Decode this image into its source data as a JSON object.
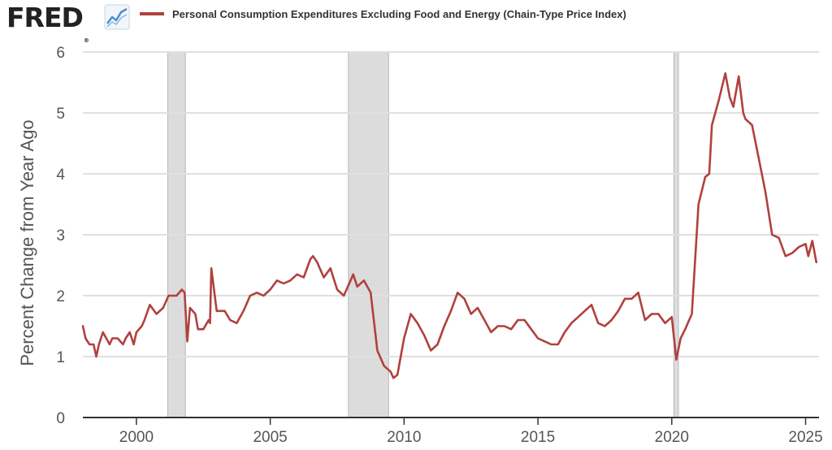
{
  "brand": {
    "logo_text": "FRED",
    "registered": "®",
    "logo_icon": "line-chart-icon"
  },
  "colors": {
    "series": "#b0413e",
    "recession": "#dcdcdc",
    "grid": "#e0e0e0",
    "axis": "#555555"
  },
  "chart_data": {
    "type": "line",
    "legend": "top-left",
    "ylabel": "Percent Change from Year Ago",
    "xlim": [
      1998.0,
      2025.5
    ],
    "ylim": [
      0,
      6
    ],
    "yticks": [
      0,
      1,
      2,
      3,
      4,
      5,
      6
    ],
    "xticks": [
      2000,
      2005,
      2010,
      2015,
      2020,
      2025
    ],
    "grid": true,
    "recessions": [
      [
        2001.17,
        2001.83
      ],
      [
        2007.92,
        2009.42
      ],
      [
        2020.08,
        2020.25
      ]
    ],
    "series": [
      {
        "name": "Personal Consumption Expenditures Excluding Food and Energy (Chain-Type Price Index)",
        "x": [
          1998.0,
          1998.1,
          1998.25,
          1998.4,
          1998.5,
          1998.6,
          1998.75,
          1999.0,
          1999.1,
          1999.3,
          1999.5,
          1999.6,
          1999.75,
          1999.9,
          2000.0,
          2000.2,
          2000.3,
          2000.5,
          2000.75,
          2001.0,
          2001.2,
          2001.5,
          2001.7,
          2001.8,
          2001.9,
          2002.0,
          2002.2,
          2002.3,
          2002.5,
          2002.7,
          2002.75,
          2002.8,
          2003.0,
          2003.3,
          2003.5,
          2003.75,
          2004.0,
          2004.25,
          2004.5,
          2004.75,
          2005.0,
          2005.25,
          2005.5,
          2005.75,
          2006.0,
          2006.25,
          2006.5,
          2006.6,
          2006.75,
          2007.0,
          2007.25,
          2007.5,
          2007.75,
          2008.0,
          2008.1,
          2008.25,
          2008.5,
          2008.75,
          2009.0,
          2009.25,
          2009.5,
          2009.6,
          2009.75,
          2010.0,
          2010.25,
          2010.5,
          2010.75,
          2011.0,
          2011.25,
          2011.5,
          2011.75,
          2012.0,
          2012.25,
          2012.5,
          2012.75,
          2013.0,
          2013.25,
          2013.5,
          2013.75,
          2014.0,
          2014.25,
          2014.5,
          2014.75,
          2015.0,
          2015.25,
          2015.5,
          2015.75,
          2016.0,
          2016.25,
          2016.5,
          2016.75,
          2017.0,
          2017.25,
          2017.5,
          2017.75,
          2018.0,
          2018.25,
          2018.5,
          2018.75,
          2019.0,
          2019.25,
          2019.5,
          2019.75,
          2020.0,
          2020.17,
          2020.33,
          2020.5,
          2020.75,
          2021.0,
          2021.25,
          2021.4,
          2021.5,
          2021.75,
          2022.0,
          2022.17,
          2022.3,
          2022.5,
          2022.67,
          2022.75,
          2023.0,
          2023.25,
          2023.5,
          2023.75,
          2024.0,
          2024.25,
          2024.5,
          2024.75,
          2025.0,
          2025.1,
          2025.25,
          2025.4
        ],
        "values": [
          1.5,
          1.3,
          1.2,
          1.2,
          1.0,
          1.2,
          1.4,
          1.2,
          1.3,
          1.3,
          1.2,
          1.3,
          1.4,
          1.2,
          1.4,
          1.5,
          1.6,
          1.85,
          1.7,
          1.8,
          2.0,
          2.0,
          2.1,
          2.05,
          1.25,
          1.8,
          1.7,
          1.45,
          1.45,
          1.6,
          1.55,
          2.45,
          1.75,
          1.75,
          1.6,
          1.55,
          1.75,
          2.0,
          2.05,
          2.0,
          2.1,
          2.25,
          2.2,
          2.25,
          2.35,
          2.3,
          2.6,
          2.65,
          2.55,
          2.3,
          2.45,
          2.1,
          2.0,
          2.25,
          2.35,
          2.15,
          2.25,
          2.05,
          1.1,
          0.85,
          0.75,
          0.65,
          0.7,
          1.3,
          1.7,
          1.55,
          1.35,
          1.1,
          1.2,
          1.5,
          1.75,
          2.05,
          1.95,
          1.7,
          1.8,
          1.6,
          1.4,
          1.5,
          1.5,
          1.45,
          1.6,
          1.6,
          1.45,
          1.3,
          1.25,
          1.2,
          1.2,
          1.4,
          1.55,
          1.65,
          1.75,
          1.85,
          1.55,
          1.5,
          1.6,
          1.75,
          1.95,
          1.95,
          2.05,
          1.6,
          1.7,
          1.7,
          1.55,
          1.65,
          0.95,
          1.3,
          1.45,
          1.7,
          3.5,
          3.95,
          4.0,
          4.8,
          5.2,
          5.65,
          5.25,
          5.1,
          5.6,
          5.0,
          4.9,
          4.8,
          4.25,
          3.7,
          3.0,
          2.95,
          2.65,
          2.7,
          2.8,
          2.85,
          2.65,
          2.9,
          2.55
        ]
      }
    ]
  }
}
